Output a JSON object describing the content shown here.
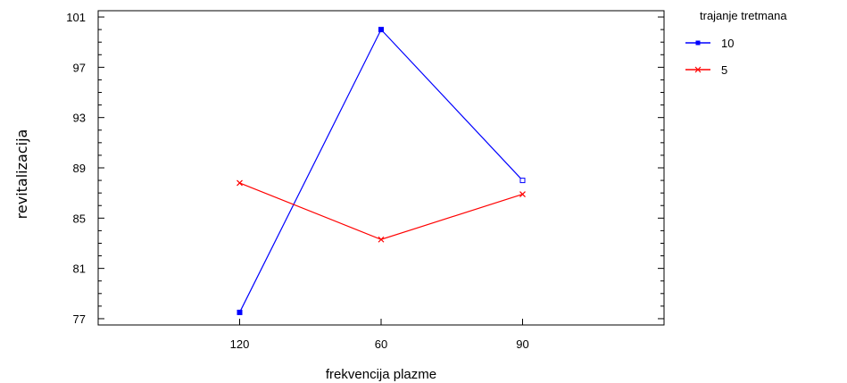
{
  "chart_data": {
    "type": "line",
    "xlabel": "frekvencija plazme",
    "ylabel": "revitalizacija",
    "categories": [
      "120",
      "60",
      "90"
    ],
    "ylim": [
      76.5,
      101.5
    ],
    "yticks": [
      77,
      81,
      85,
      89,
      93,
      97,
      101
    ],
    "legend": {
      "title": "trajanje tretmana",
      "placement": "top-right, outside plot"
    },
    "series": [
      {
        "name": "10",
        "color": "#0000ff",
        "marker": "square",
        "values": [
          77.5,
          100.0,
          88.0
        ]
      },
      {
        "name": "5",
        "color": "#ff0000",
        "marker": "cross",
        "values": [
          87.8,
          83.3,
          86.9
        ]
      }
    ]
  }
}
